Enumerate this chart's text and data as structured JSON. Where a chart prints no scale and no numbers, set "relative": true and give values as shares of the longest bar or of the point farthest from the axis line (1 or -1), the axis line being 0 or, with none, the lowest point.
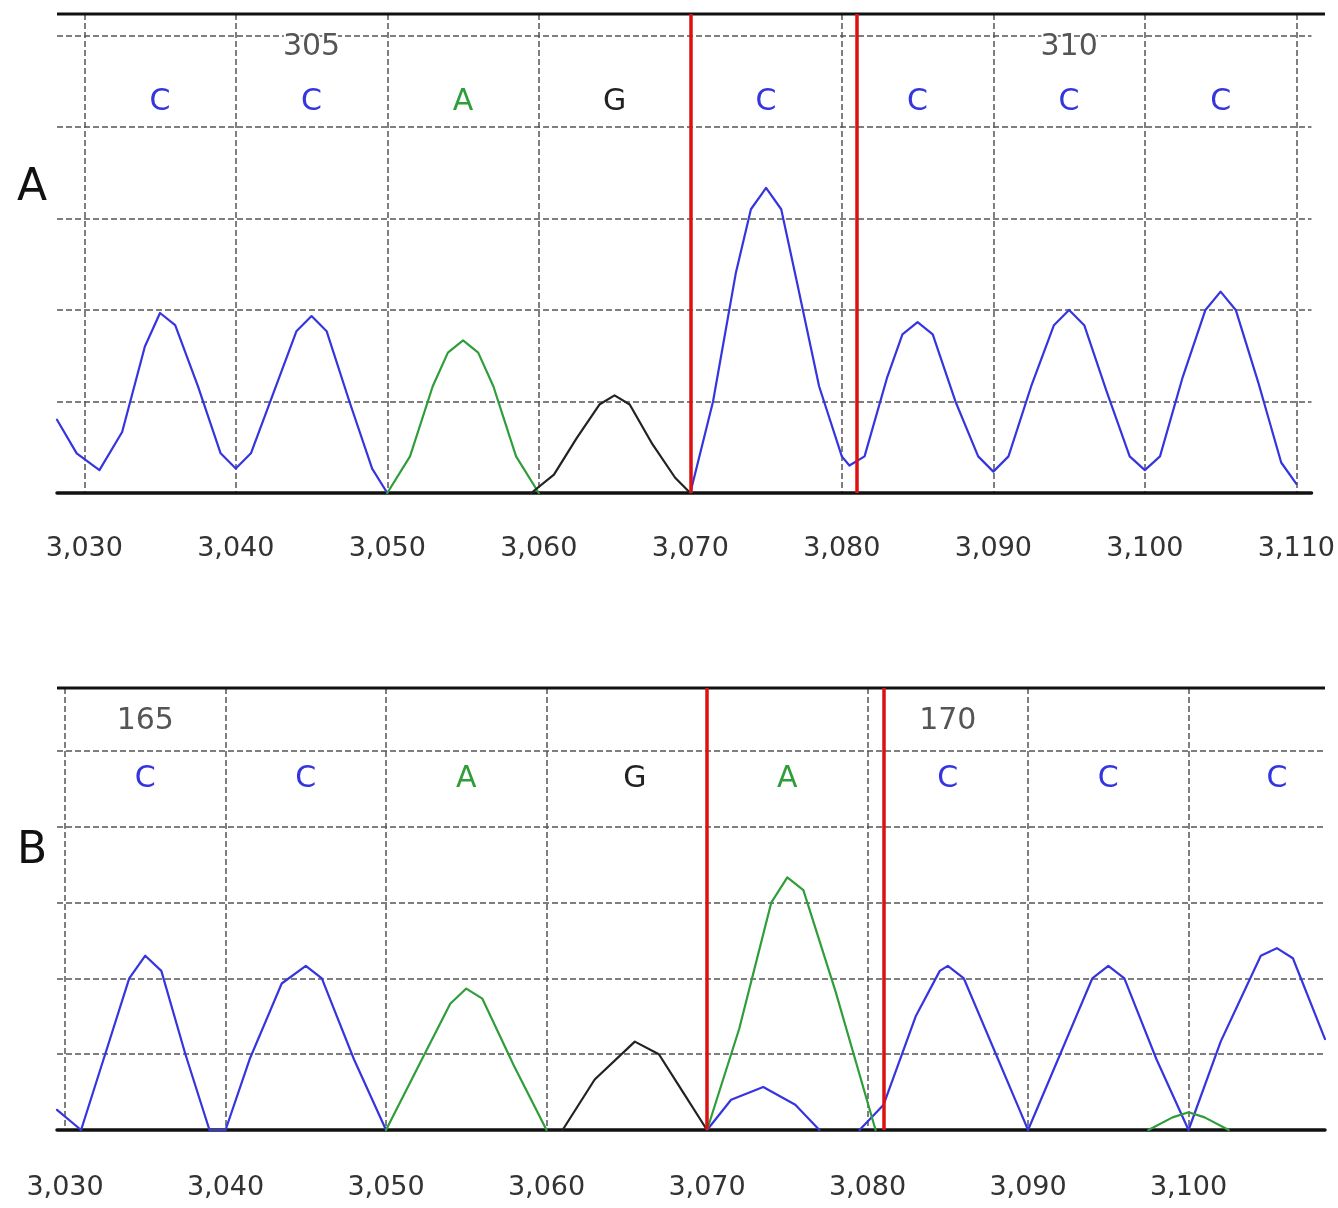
{
  "chart_data": [
    {
      "type": "line",
      "title": "A",
      "relative": true,
      "grid": true,
      "marker": "none",
      "line_style": "solid",
      "tick_labels": "x",
      "xlim": [
        3028.2,
        3111
      ],
      "xticks": [
        {
          "value": 3030,
          "label": "3,030"
        },
        {
          "value": 3040,
          "label": "3,040"
        },
        {
          "value": 3050,
          "label": "3,050"
        },
        {
          "value": 3060,
          "label": "3,060"
        },
        {
          "value": 3070,
          "label": "3,070"
        },
        {
          "value": 3080,
          "label": "3,080"
        },
        {
          "value": 3090,
          "label": "3,090"
        },
        {
          "value": 3100,
          "label": "3,100"
        },
        {
          "value": 3110,
          "label": "3,110"
        }
      ],
      "series": [
        {
          "color": "#3535e0",
          "x": [
            3028.2,
            3029.5,
            3031,
            3032.5,
            3034,
            3035,
            3036,
            3037.5,
            3039,
            3040,
            3041,
            3042.5,
            3044,
            3045,
            3046,
            3047.5,
            3049,
            3050,
            3060,
            3070,
            3071.5,
            3073,
            3074,
            3075,
            3076,
            3077,
            3078.5,
            3080,
            3080.5,
            3081.5,
            3083,
            3084,
            3085,
            3086,
            3087.5,
            3089,
            3090,
            3091,
            3092.5,
            3094,
            3095,
            3096,
            3097.5,
            3099,
            3100,
            3101,
            3102.5,
            3104,
            3105,
            3106,
            3107.5,
            3109,
            3110
          ],
          "values": [
            0.24,
            0.13,
            0.075,
            0.2,
            0.48,
            0.59,
            0.55,
            0.35,
            0.13,
            0.08,
            0.13,
            0.33,
            0.53,
            0.58,
            0.53,
            0.3,
            0.08,
            0,
            null,
            0,
            0.3,
            0.72,
            0.93,
            1,
            0.93,
            0.7,
            0.35,
            0.12,
            0.09,
            0.12,
            0.38,
            0.52,
            0.56,
            0.52,
            0.3,
            0.12,
            0.07,
            0.12,
            0.35,
            0.55,
            0.6,
            0.55,
            0.33,
            0.12,
            0.075,
            0.12,
            0.38,
            0.6,
            0.66,
            0.6,
            0.36,
            0.1,
            0.03
          ]
        },
        {
          "color": "#2f9e3a",
          "x": [
            3050,
            3051.5,
            3053,
            3054,
            3055,
            3056,
            3057,
            3058.5,
            3060
          ],
          "values": [
            0,
            0.12,
            0.35,
            0.46,
            0.5,
            0.46,
            0.35,
            0.12,
            0
          ]
        },
        {
          "color": "#222222",
          "x": [
            3059.5,
            3061,
            3062.5,
            3064,
            3065,
            3066,
            3067.5,
            3069,
            3070
          ],
          "values": [
            0,
            0.06,
            0.18,
            0.29,
            0.32,
            0.29,
            0.16,
            0.05,
            0
          ]
        }
      ],
      "ref_lines": [
        {
          "axis": "x",
          "value": 3070,
          "label": null,
          "color": "#dd1111"
        },
        {
          "axis": "x",
          "value": 3081,
          "label": null,
          "color": "#dd1111"
        }
      ],
      "annotations": [
        "C",
        "305",
        "C",
        "A",
        "G",
        "C",
        "C",
        "310",
        "C",
        "C"
      ]
    },
    {
      "type": "line",
      "title": "B",
      "relative": true,
      "grid": true,
      "marker": "none",
      "line_style": "solid",
      "tick_labels": "x",
      "xlim": [
        3029.5,
        3108.5
      ],
      "xticks": [
        {
          "value": 3030,
          "label": "3,030"
        },
        {
          "value": 3040,
          "label": "3,040"
        },
        {
          "value": 3050,
          "label": "3,050"
        },
        {
          "value": 3060,
          "label": "3,060"
        },
        {
          "value": 3070,
          "label": "3,070"
        },
        {
          "value": 3080,
          "label": "3,080"
        },
        {
          "value": 3090,
          "label": "3,090"
        },
        {
          "value": 3100,
          "label": "3,100"
        }
      ],
      "series": [
        {
          "color": "#3535e0",
          "x": [
            3029.5,
            3031,
            3032.5,
            3034,
            3035,
            3036,
            3037.5,
            3039,
            3040,
            3041.5,
            3043.5,
            3045,
            3046,
            3048,
            3050,
            3060,
            3070,
            3071.5,
            3073.5,
            3075.5,
            3077,
            3078,
            3079.5,
            3081,
            3083,
            3084.5,
            3085,
            3086,
            3088,
            3090,
            3092,
            3094,
            3095,
            3096,
            3098,
            3100,
            3102,
            3104.5,
            3105.5,
            3106.5,
            3108.5
          ],
          "values": [
            0.08,
            0,
            0.3,
            0.6,
            0.69,
            0.63,
            0.3,
            0,
            0,
            0.28,
            0.58,
            0.65,
            0.6,
            0.28,
            0,
            null,
            0,
            0.12,
            0.17,
            0.1,
            0,
            null,
            0,
            0.1,
            0.45,
            0.63,
            0.65,
            0.6,
            0.3,
            0,
            0.3,
            0.6,
            0.65,
            0.6,
            0.28,
            0,
            0.35,
            0.69,
            0.72,
            0.68,
            0.36
          ]
        },
        {
          "color": "#2f9e3a",
          "x": [
            3050,
            3052,
            3054,
            3055,
            3056,
            3058,
            3060,
            3065,
            3070,
            3072,
            3074,
            3075,
            3076,
            3078,
            3080.5,
            3090,
            3097.5,
            3099,
            3100,
            3101,
            3102.5
          ],
          "values": [
            0,
            0.25,
            0.5,
            0.56,
            0.52,
            0.25,
            0,
            null,
            0,
            0.4,
            0.9,
            1,
            0.95,
            0.55,
            0,
            null,
            0,
            0.05,
            0.07,
            0.05,
            0
          ]
        },
        {
          "color": "#222222",
          "x": [
            3061,
            3063,
            3065.5,
            3067,
            3068.5,
            3070
          ],
          "values": [
            0,
            0.2,
            0.35,
            0.3,
            0.15,
            0
          ]
        }
      ],
      "ref_lines": [
        {
          "axis": "x",
          "value": 3070,
          "label": null,
          "color": "#dd1111"
        },
        {
          "axis": "x",
          "value": 3081,
          "label": null,
          "color": "#dd1111"
        }
      ],
      "annotations": [
        "165",
        "C",
        "C",
        "A",
        "G",
        "A",
        "170",
        "C",
        "C",
        "C"
      ]
    }
  ]
}
